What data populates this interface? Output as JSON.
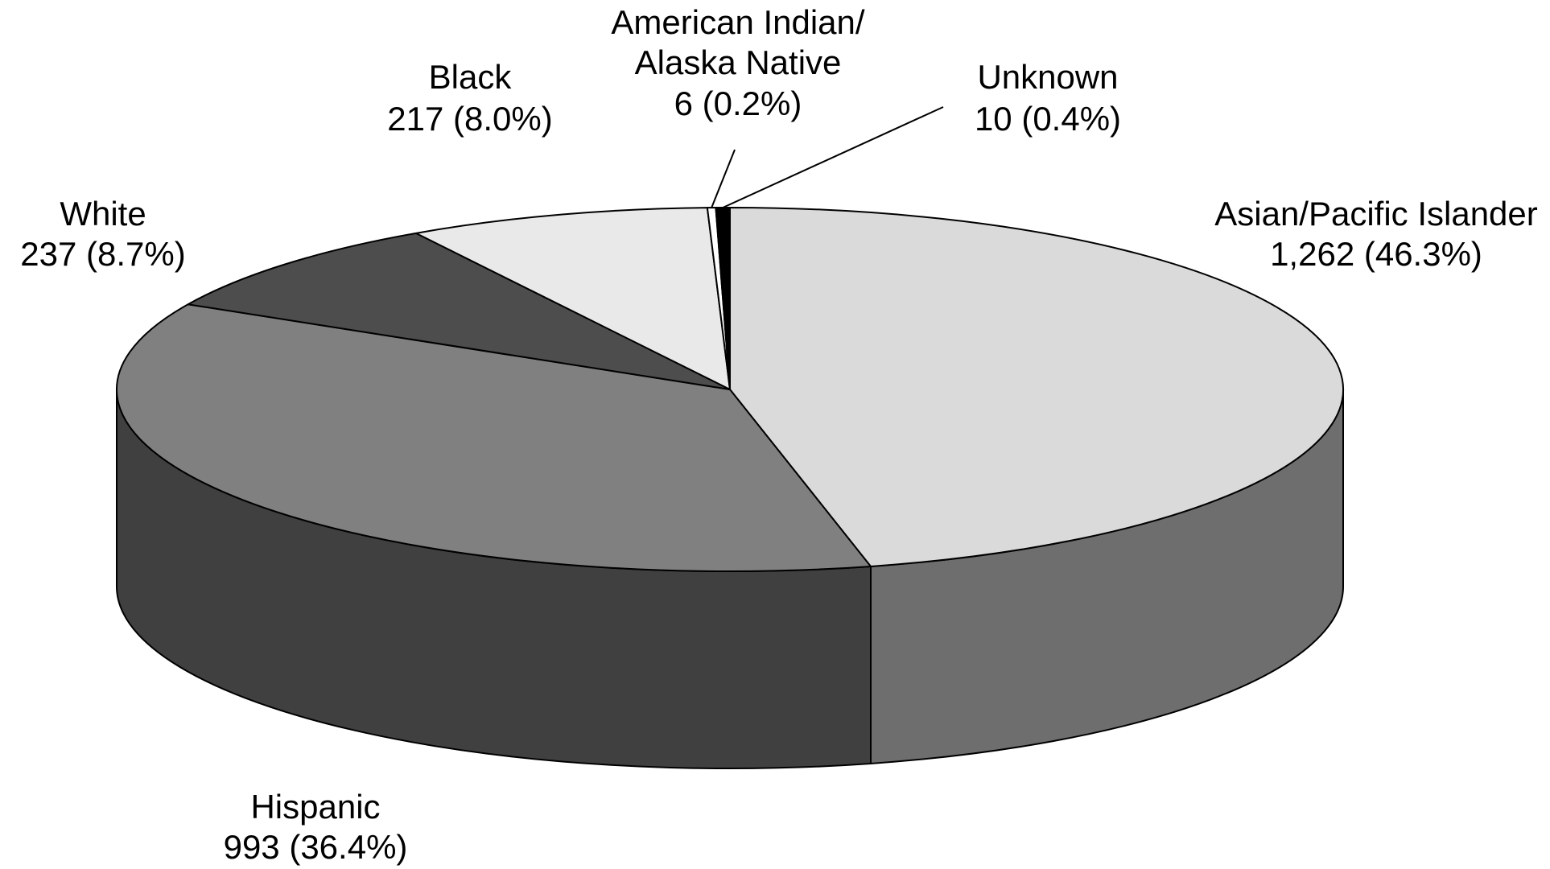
{
  "chart_data": {
    "type": "pie",
    "style": "3d-perspective",
    "slices": [
      {
        "name": "Asian/Pacific Islander",
        "value": 1262,
        "percent": 46.3,
        "value_label": "1,262 (46.3%)",
        "color": "#dadada",
        "side_color": "#6e6e6e"
      },
      {
        "name": "Hispanic",
        "value": 993,
        "percent": 36.4,
        "value_label": "993 (36.4%)",
        "color": "#808080",
        "side_color": "#404040"
      },
      {
        "name": "White",
        "value": 237,
        "percent": 8.7,
        "value_label": "237 (8.7%)",
        "color": "#4d4d4d",
        "side_color": "#404040"
      },
      {
        "name": "Black",
        "value": 217,
        "percent": 8.0,
        "value_label": "217 (8.0%)",
        "color": "#e9e9e9",
        "side_color": "#6e6e6e"
      },
      {
        "name_lines": [
          "American Indian/",
          "Alaska Native"
        ],
        "name": "American Indian/ Alaska Native",
        "value": 6,
        "percent": 0.2,
        "value_label": "6 (0.2%)",
        "color": "#ffffff",
        "side_color": "#6e6e6e"
      },
      {
        "name": "Unknown",
        "value": 10,
        "percent": 0.4,
        "value_label": "10 (0.4%)",
        "color": "#000000",
        "side_color": "#000000"
      }
    ],
    "legend": "none (direct labels)"
  }
}
